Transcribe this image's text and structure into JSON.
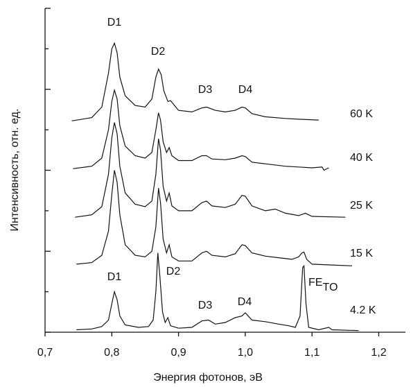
{
  "chart_data": {
    "type": "line",
    "x_label": "Энергия фотонов, эВ",
    "y_label": "Интенсивность, отн. ед.",
    "xlim": [
      0.7,
      1.24
    ],
    "xticks": [
      {
        "value": 0.7,
        "label": "0,7"
      },
      {
        "value": 0.8,
        "label": "0,8"
      },
      {
        "value": 0.9,
        "label": "0,9"
      },
      {
        "value": 1.0,
        "label": "1,0"
      },
      {
        "value": 1.1,
        "label": "1,1"
      },
      {
        "value": 1.2,
        "label": "1,2"
      }
    ],
    "ylim": [
      0,
      4
    ],
    "yticks": [
      0,
      1,
      2,
      3,
      4
    ],
    "yminorticks": [
      0.5,
      1.5,
      2.5,
      3.5
    ],
    "ytick_labels": false,
    "grid": false,
    "series": [
      {
        "name": "60 K",
        "color": "#111111",
        "x": [
          0.74,
          0.77,
          0.785,
          0.795,
          0.8,
          0.804,
          0.808,
          0.812,
          0.82,
          0.835,
          0.85,
          0.86,
          0.866,
          0.87,
          0.874,
          0.878,
          0.884,
          0.888,
          0.9,
          0.92,
          0.935,
          0.942,
          0.955,
          0.97,
          0.985,
          0.995,
          1.0,
          1.01,
          1.03,
          1.06,
          1.08,
          1.11
        ],
        "values": [
          2.61,
          2.65,
          2.78,
          3.2,
          3.5,
          3.57,
          3.45,
          3.15,
          2.92,
          2.8,
          2.78,
          2.88,
          3.15,
          3.25,
          3.18,
          2.98,
          2.85,
          2.86,
          2.74,
          2.72,
          2.77,
          2.78,
          2.74,
          2.72,
          2.74,
          2.78,
          2.77,
          2.7,
          2.66,
          2.64,
          2.63,
          2.62
        ]
      },
      {
        "name": "40 K",
        "color": "#111111",
        "x": [
          0.742,
          0.77,
          0.785,
          0.795,
          0.8,
          0.804,
          0.808,
          0.812,
          0.82,
          0.835,
          0.85,
          0.86,
          0.866,
          0.87,
          0.873,
          0.877,
          0.882,
          0.886,
          0.89,
          0.9,
          0.92,
          0.935,
          0.942,
          0.95,
          0.97,
          0.985,
          0.995,
          1.0,
          1.01,
          1.03,
          1.06,
          1.08,
          1.1,
          1.115,
          1.118,
          1.125
        ],
        "values": [
          2.02,
          2.05,
          2.15,
          2.5,
          2.85,
          2.99,
          2.88,
          2.55,
          2.3,
          2.18,
          2.15,
          2.22,
          2.5,
          2.71,
          2.62,
          2.35,
          2.22,
          2.28,
          2.18,
          2.12,
          2.12,
          2.18,
          2.18,
          2.14,
          2.13,
          2.15,
          2.18,
          2.17,
          2.1,
          2.08,
          2.05,
          2.04,
          2.03,
          2.04,
          2.0,
          2.03
        ]
      },
      {
        "name": "25 K",
        "color": "#111111",
        "x": [
          0.745,
          0.77,
          0.785,
          0.795,
          0.8,
          0.804,
          0.808,
          0.812,
          0.82,
          0.835,
          0.85,
          0.86,
          0.866,
          0.87,
          0.873,
          0.877,
          0.882,
          0.886,
          0.89,
          0.9,
          0.92,
          0.935,
          0.942,
          0.95,
          0.97,
          0.985,
          0.995,
          1.0,
          1.01,
          1.03,
          1.045,
          1.06,
          1.08,
          1.09,
          1.1,
          1.15
        ],
        "values": [
          1.42,
          1.45,
          1.55,
          1.95,
          2.4,
          2.59,
          2.45,
          2.05,
          1.72,
          1.58,
          1.55,
          1.62,
          1.95,
          2.39,
          2.25,
          1.8,
          1.62,
          1.72,
          1.56,
          1.5,
          1.5,
          1.6,
          1.62,
          1.56,
          1.54,
          1.58,
          1.69,
          1.68,
          1.56,
          1.5,
          1.52,
          1.47,
          1.44,
          1.47,
          1.43,
          1.42
        ]
      },
      {
        "name": "15 K",
        "color": "#111111",
        "x": [
          0.747,
          0.77,
          0.785,
          0.795,
          0.8,
          0.804,
          0.808,
          0.812,
          0.82,
          0.835,
          0.85,
          0.86,
          0.866,
          0.87,
          0.873,
          0.877,
          0.882,
          0.886,
          0.89,
          0.9,
          0.92,
          0.935,
          0.942,
          0.95,
          0.97,
          0.985,
          0.995,
          1.0,
          1.01,
          1.03,
          1.05,
          1.07,
          1.08,
          1.085,
          1.088,
          1.092,
          1.1,
          1.13,
          1.16
        ],
        "values": [
          0.84,
          0.86,
          0.95,
          1.25,
          1.7,
          2.0,
          1.85,
          1.45,
          1.08,
          0.95,
          0.93,
          1.0,
          1.3,
          1.78,
          1.6,
          1.15,
          0.98,
          1.08,
          0.93,
          0.88,
          0.88,
          0.98,
          1.0,
          0.95,
          0.93,
          0.97,
          1.08,
          1.07,
          0.98,
          0.94,
          0.92,
          0.9,
          0.93,
          0.98,
          0.99,
          0.9,
          0.84,
          0.83,
          0.82
        ]
      },
      {
        "name": "4.2 K",
        "color": "#111111",
        "x": [
          0.747,
          0.77,
          0.785,
          0.795,
          0.8,
          0.804,
          0.808,
          0.812,
          0.82,
          0.84,
          0.855,
          0.862,
          0.866,
          0.869,
          0.872,
          0.876,
          0.88,
          0.884,
          0.888,
          0.9,
          0.92,
          0.935,
          0.945,
          0.955,
          0.97,
          0.985,
          0.995,
          1.0,
          1.01,
          1.03,
          1.05,
          1.065,
          1.075,
          1.082,
          1.086,
          1.088,
          1.091,
          1.095,
          1.11,
          1.125,
          1.13,
          1.17
        ],
        "values": [
          0.03,
          0.04,
          0.07,
          0.15,
          0.35,
          0.5,
          0.4,
          0.2,
          0.09,
          0.06,
          0.07,
          0.15,
          0.5,
          0.98,
          0.7,
          0.25,
          0.12,
          0.18,
          0.08,
          0.05,
          0.06,
          0.14,
          0.15,
          0.1,
          0.12,
          0.18,
          0.2,
          0.24,
          0.15,
          0.13,
          0.1,
          0.08,
          0.06,
          0.2,
          0.8,
          0.82,
          0.35,
          0.06,
          0.03,
          0.06,
          0.03,
          0.02
        ]
      }
    ],
    "annotations": [
      "D1",
      "D2",
      "D3",
      "D4",
      "D1",
      "D2",
      "D3",
      "D4"
    ],
    "fe_label": {
      "text": "FE",
      "sub": "TO"
    }
  }
}
